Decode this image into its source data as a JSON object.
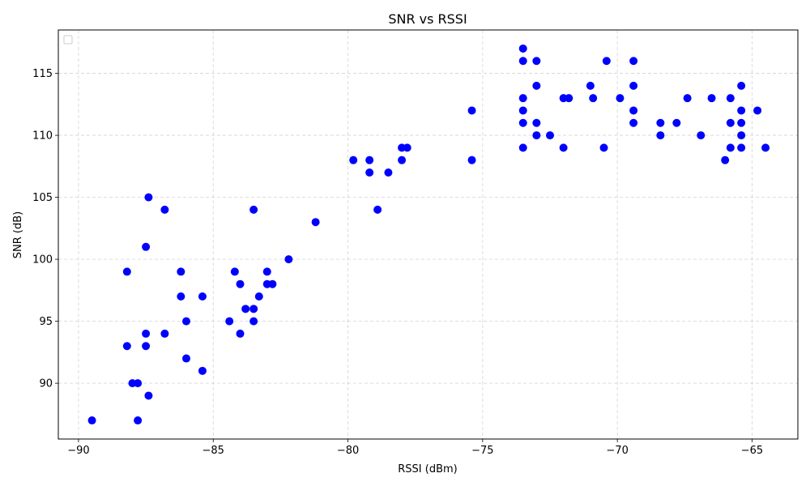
{
  "chart_data": {
    "type": "scatter",
    "title": "SNR vs RSSI",
    "xlabel": "RSSI (dBm)",
    "ylabel": "SNR (dB)",
    "xlim": [
      -90.75,
      -63.3
    ],
    "ylim": [
      85.5,
      118.5
    ],
    "xticks": [
      -90,
      -85,
      -80,
      -75,
      -70,
      -65
    ],
    "xtick_labels": [
      "−90",
      "−85",
      "−80",
      "−75",
      "−70",
      "−65"
    ],
    "yticks": [
      90,
      95,
      100,
      105,
      110,
      115
    ],
    "ytick_labels": [
      "90",
      "95",
      "100",
      "105",
      "110",
      "115"
    ],
    "grid": true,
    "legend": "top-left",
    "marker_color": "#0000ff",
    "series": [
      {
        "points": [
          [
            -89.5,
            87
          ],
          [
            -88.2,
            99
          ],
          [
            -88.2,
            93
          ],
          [
            -88.0,
            90
          ],
          [
            -87.8,
            90
          ],
          [
            -87.8,
            87
          ],
          [
            -87.5,
            101
          ],
          [
            -87.5,
            94
          ],
          [
            -87.5,
            93
          ],
          [
            -87.4,
            105
          ],
          [
            -87.4,
            89
          ],
          [
            -86.8,
            104
          ],
          [
            -86.8,
            94
          ],
          [
            -86.2,
            99
          ],
          [
            -86.2,
            97
          ],
          [
            -86.0,
            95
          ],
          [
            -86.0,
            92
          ],
          [
            -85.4,
            97
          ],
          [
            -85.4,
            91
          ],
          [
            -84.4,
            95
          ],
          [
            -84.2,
            99
          ],
          [
            -84.0,
            98
          ],
          [
            -84.0,
            94
          ],
          [
            -83.8,
            96
          ],
          [
            -83.5,
            104
          ],
          [
            -83.5,
            96
          ],
          [
            -83.5,
            95
          ],
          [
            -83.3,
            97
          ],
          [
            -83.0,
            99
          ],
          [
            -83.0,
            98
          ],
          [
            -82.8,
            98
          ],
          [
            -82.2,
            100
          ],
          [
            -81.2,
            103
          ],
          [
            -79.8,
            108
          ],
          [
            -79.2,
            108
          ],
          [
            -79.2,
            107
          ],
          [
            -78.9,
            104
          ],
          [
            -78.5,
            107
          ],
          [
            -78.0,
            109
          ],
          [
            -78.0,
            108
          ],
          [
            -77.8,
            109
          ],
          [
            -75.4,
            112
          ],
          [
            -75.4,
            108
          ],
          [
            -73.5,
            117
          ],
          [
            -73.5,
            116
          ],
          [
            -73.5,
            113
          ],
          [
            -73.5,
            112
          ],
          [
            -73.5,
            111
          ],
          [
            -73.5,
            109
          ],
          [
            -73.0,
            116
          ],
          [
            -73.0,
            114
          ],
          [
            -73.0,
            111
          ],
          [
            -73.0,
            110
          ],
          [
            -72.5,
            110
          ],
          [
            -72.0,
            113
          ],
          [
            -72.0,
            109
          ],
          [
            -71.8,
            113
          ],
          [
            -71.0,
            114
          ],
          [
            -70.9,
            113
          ],
          [
            -70.5,
            109
          ],
          [
            -70.4,
            116
          ],
          [
            -69.9,
            113
          ],
          [
            -69.4,
            116
          ],
          [
            -69.4,
            114
          ],
          [
            -69.4,
            112
          ],
          [
            -69.4,
            111
          ],
          [
            -68.4,
            111
          ],
          [
            -68.4,
            110
          ],
          [
            -67.8,
            111
          ],
          [
            -67.4,
            113
          ],
          [
            -66.9,
            110
          ],
          [
            -66.5,
            113
          ],
          [
            -66.0,
            108
          ],
          [
            -65.8,
            113
          ],
          [
            -65.8,
            111
          ],
          [
            -65.8,
            109
          ],
          [
            -65.4,
            114
          ],
          [
            -65.4,
            112
          ],
          [
            -65.4,
            111
          ],
          [
            -65.4,
            110
          ],
          [
            -65.4,
            109
          ],
          [
            -64.8,
            112
          ],
          [
            -64.5,
            109
          ]
        ]
      }
    ]
  }
}
